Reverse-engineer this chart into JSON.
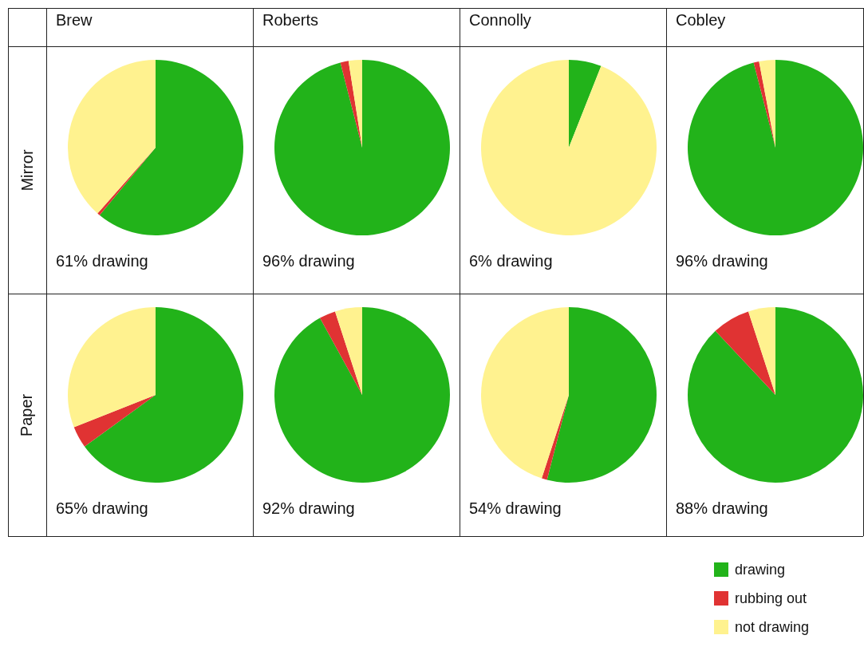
{
  "chart_data": [
    {
      "type": "pie",
      "title": "Brew",
      "ylabel": "Mirror",
      "categories": [
        null,
        null,
        null
      ],
      "values": [
        61,
        0.5,
        38.5
      ],
      "colors": [
        "#22b31a",
        "#e03333",
        "#fff28f"
      ],
      "annotations": [
        "61% drawing"
      ]
    },
    {
      "type": "pie",
      "title": "Roberts",
      "categories": [
        null,
        null,
        null
      ],
      "values": [
        96,
        1.5,
        2.5
      ],
      "colors": [
        "#22b31a",
        "#e03333",
        "#fff28f"
      ],
      "annotations": [
        "96% drawing"
      ]
    },
    {
      "type": "pie",
      "title": "Connolly",
      "categories": [
        null,
        null,
        null
      ],
      "values": [
        6,
        0,
        94
      ],
      "colors": [
        "#22b31a",
        "#e03333",
        "#fff28f"
      ],
      "annotations": [
        "6% drawing"
      ]
    },
    {
      "type": "pie",
      "title": "Cobley",
      "categories": [
        null,
        null,
        null
      ],
      "values": [
        96,
        1,
        3
      ],
      "colors": [
        "#22b31a",
        "#e03333",
        "#fff28f"
      ],
      "annotations": [
        "96% drawing"
      ]
    },
    {
      "type": "pie",
      "ylabel": "Paper",
      "categories": [
        null,
        null,
        null
      ],
      "values": [
        65,
        4,
        31
      ],
      "colors": [
        "#22b31a",
        "#e03333",
        "#fff28f"
      ],
      "annotations": [
        "65% drawing"
      ]
    },
    {
      "type": "pie",
      "categories": [
        null,
        null,
        null
      ],
      "values": [
        92,
        3,
        5
      ],
      "colors": [
        "#22b31a",
        "#e03333",
        "#fff28f"
      ],
      "annotations": [
        "92% drawing"
      ]
    },
    {
      "type": "pie",
      "categories": [
        null,
        null,
        null
      ],
      "values": [
        54,
        1,
        45
      ],
      "colors": [
        "#22b31a",
        "#e03333",
        "#fff28f"
      ],
      "annotations": [
        "54% drawing"
      ]
    },
    {
      "type": "pie",
      "categories": [
        "drawing",
        "rubbing out",
        "not drawing"
      ],
      "values": [
        88,
        7,
        5
      ],
      "colors": [
        "#22b31a",
        "#e03333",
        "#fff28f"
      ],
      "annotations": [
        "88% drawing"
      ],
      "legend": "bottom"
    }
  ]
}
